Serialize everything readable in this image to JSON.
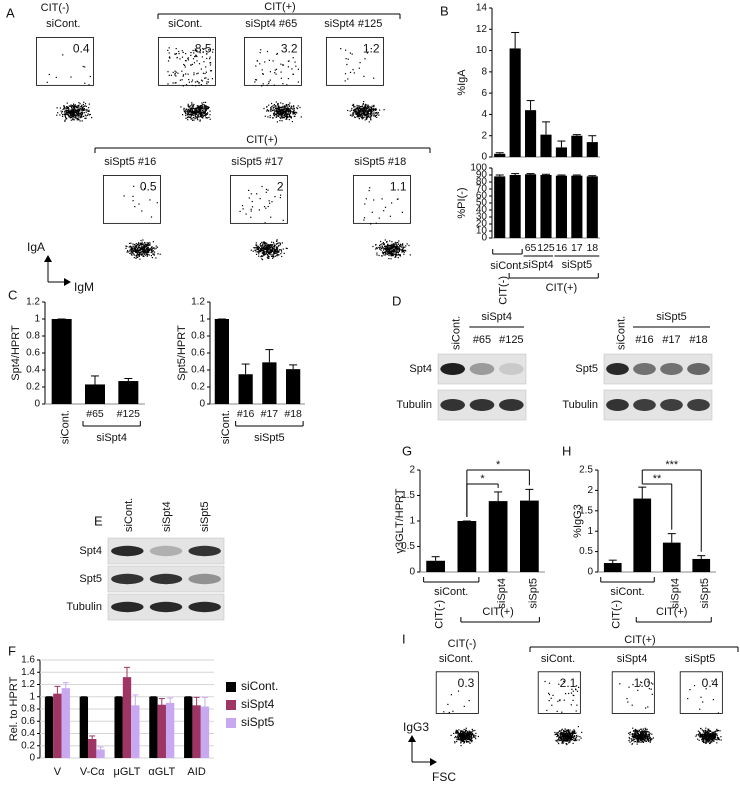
{
  "panels": {
    "A": {
      "label": "A",
      "cit_neg": "CIT(-)",
      "cit_pos_top": "CIT(+)",
      "cit_pos_bottom": "CIT(+)",
      "plots": [
        {
          "name": "siCont.",
          "gate": "0.4"
        },
        {
          "name": "siCont.",
          "gate": "8.5"
        },
        {
          "name": "siSpt4 #65",
          "gate": "3.2"
        },
        {
          "name": "siSpt4 #125",
          "gate": "1.2"
        },
        {
          "name": "siSpt5 #16",
          "gate": "0.5"
        },
        {
          "name": "siSpt5 #17",
          "gate": "2"
        },
        {
          "name": "siSpt5 #18",
          "gate": "1.1"
        }
      ],
      "y_axis": "IgA",
      "x_axis": "IgM"
    },
    "B": {
      "label": "B"
    },
    "C": {
      "label": "C"
    },
    "D": {
      "label": "D",
      "left": {
        "lanes": [
          "siCont.",
          "#65",
          "#125"
        ],
        "group": "siSpt4",
        "rows": [
          "Spt4",
          "Tubulin"
        ]
      },
      "right": {
        "lanes": [
          "siCont.",
          "#16",
          "#17",
          "#18"
        ],
        "group": "siSpt5",
        "rows": [
          "Spt5",
          "Tubulin"
        ]
      }
    },
    "E": {
      "label": "E",
      "lanes": [
        "siCont.",
        "siSpt4",
        "siSpt5"
      ],
      "rows": [
        "Spt4",
        "Spt5",
        "Tubulin"
      ]
    },
    "F": {
      "label": "F"
    },
    "G": {
      "label": "G"
    },
    "H": {
      "label": "H"
    },
    "I": {
      "label": "I",
      "cit_neg": "CIT(-)",
      "cit_pos": "CIT(+)",
      "plots": [
        {
          "name": "siCont.",
          "gate": "0.3"
        },
        {
          "name": "siCont.",
          "gate": "2.1"
        },
        {
          "name": "siSpt4",
          "gate": "1.0"
        },
        {
          "name": "siSpt5",
          "gate": "0.4"
        }
      ],
      "y_axis": "IgG3",
      "x_axis": "FSC"
    }
  },
  "chart_data": [
    {
      "type": "bar",
      "ylabel": "%IgA",
      "values": [
        0.3,
        10.2,
        4.4,
        2.1,
        0.9,
        2.0,
        1.4
      ],
      "errors": [
        0.1,
        1.5,
        0.9,
        1.2,
        0.6,
        0.1,
        0.6
      ],
      "ylim": [
        0,
        14
      ],
      "yticks": [
        0,
        2,
        4,
        6,
        8,
        10,
        12,
        14
      ],
      "color": "#000000"
    },
    {
      "type": "bar",
      "ylabel": "%PI(-)",
      "categories": [
        null,
        null,
        "65",
        "125",
        "16",
        "17",
        "18"
      ],
      "values": [
        88,
        90,
        91,
        90,
        89,
        89,
        88
      ],
      "errors": [
        2,
        2,
        1,
        1,
        1,
        1,
        1
      ],
      "ylim": [
        0,
        100
      ],
      "yticks": [
        0,
        10,
        20,
        30,
        40,
        50,
        60,
        70,
        80,
        90,
        100
      ],
      "color": "#000000",
      "group_labels": [
        "siCont.",
        "siSpt4",
        "siSpt5"
      ],
      "condition_labels": [
        "CIT(-)",
        "CIT(+)"
      ]
    },
    {
      "type": "bar",
      "ylabel": "Spt4/HPRT",
      "categories": [
        "siCont.",
        "#65",
        "#125"
      ],
      "values": [
        1,
        0.23,
        0.27
      ],
      "errors": [
        0,
        0.1,
        0.03
      ],
      "ylim": [
        0,
        1.2
      ],
      "yticks": [
        0,
        0.2,
        0.4,
        0.6,
        0.8,
        1,
        1.2
      ],
      "color": "#000000",
      "group_labels": [
        "siSpt4"
      ]
    },
    {
      "type": "bar",
      "ylabel": "Spt5/HPRT",
      "categories": [
        "siCont.",
        "#16",
        "#17",
        "#18"
      ],
      "values": [
        1,
        0.35,
        0.49,
        0.41
      ],
      "errors": [
        0,
        0.12,
        0.15,
        0.05
      ],
      "ylim": [
        0,
        1.2
      ],
      "yticks": [
        0,
        0.2,
        0.4,
        0.6,
        0.8,
        1,
        1.2
      ],
      "color": "#000000",
      "group_labels": [
        "siSpt5"
      ]
    },
    {
      "type": "grouped_bar",
      "ylabel": "Rel. to HPRT",
      "categories": [
        "V",
        "V-Cα",
        "μGLT",
        "αGLT",
        "AID"
      ],
      "series": [
        {
          "name": "siCont.",
          "color": "#000000",
          "values": [
            1,
            1,
            1,
            1,
            1
          ],
          "errors": [
            0,
            0,
            0,
            0,
            0
          ]
        },
        {
          "name": "siSpt4",
          "color": "#9e3562",
          "values": [
            1.05,
            0.31,
            1.32,
            0.87,
            0.86
          ],
          "errors": [
            0.12,
            0.05,
            0.16,
            0.1,
            0.13
          ]
        },
        {
          "name": "siSpt5",
          "color": "#c9a8f2",
          "values": [
            1.14,
            0.14,
            0.86,
            0.9,
            0.84
          ],
          "errors": [
            0.09,
            0.04,
            0.17,
            0.08,
            0.15
          ]
        }
      ],
      "ylim": [
        0,
        1.6
      ],
      "yticks": [
        0,
        0.2,
        0.4,
        0.6,
        0.8,
        1,
        1.2,
        1.4,
        1.6
      ]
    },
    {
      "type": "bar",
      "ylabel": "γ3GLT/HPRT",
      "categories": [
        null,
        null,
        "siSpt4",
        "siSpt5"
      ],
      "values": [
        0.22,
        1,
        1.39,
        1.4
      ],
      "errors": [
        0.08,
        0,
        0.18,
        0.22
      ],
      "ylim": [
        0,
        2
      ],
      "yticks": [
        0,
        0.5,
        1,
        1.5,
        2
      ],
      "color": "#000000",
      "group_labels": [
        "siCont."
      ],
      "condition_labels": [
        "CIT(-)",
        "CIT(+)"
      ],
      "significance": [
        "*",
        "*"
      ]
    },
    {
      "type": "bar",
      "ylabel": "%IgG3",
      "categories": [
        null,
        null,
        "siSpt4",
        "siSpt5"
      ],
      "values": [
        0.22,
        1.8,
        0.72,
        0.32
      ],
      "errors": [
        0.07,
        0.28,
        0.22,
        0.08
      ],
      "ylim": [
        0,
        2.5
      ],
      "yticks": [
        0,
        0.5,
        1,
        1.5,
        2,
        2.5
      ],
      "color": "#000000",
      "group_labels": [
        "siCont."
      ],
      "condition_labels": [
        "CIT(-)",
        "CIT(+)"
      ],
      "significance": [
        "**",
        "***"
      ]
    }
  ]
}
